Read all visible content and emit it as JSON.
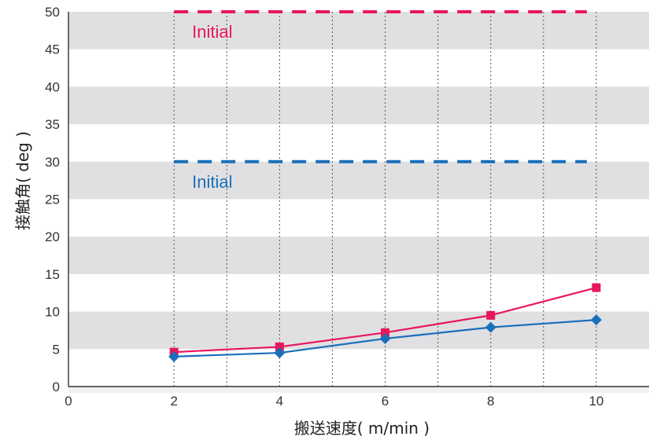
{
  "chart_data": {
    "type": "line",
    "xlabel": "搬送速度( m/min )",
    "ylabel": "接触角( deg )",
    "xlim": [
      0,
      11
    ],
    "ylim": [
      0,
      50
    ],
    "xticks": [
      0,
      2,
      4,
      6,
      8,
      10
    ],
    "yticks": [
      0,
      5,
      10,
      15,
      20,
      25,
      30,
      35,
      40,
      45,
      50
    ],
    "grid": "alternating horizontal bands, dotted vertical gridlines",
    "series": [
      {
        "color": "#e8175d",
        "marker": "square",
        "x": [
          2,
          4,
          6,
          8,
          10
        ],
        "y": [
          4.6,
          5.3,
          7.2,
          9.5,
          13.2
        ]
      },
      {
        "color": "#1a6fba",
        "marker": "diamond",
        "x": [
          2,
          4,
          6,
          8,
          10
        ],
        "y": [
          4.0,
          4.5,
          6.4,
          7.9,
          8.9
        ]
      }
    ],
    "reference_lines": [
      {
        "label": "Initial",
        "y": 50,
        "x_from": 2,
        "x_to": 10,
        "color": "#e8175d",
        "style": "dashed"
      },
      {
        "label": "Initial",
        "y": 30,
        "x_from": 2,
        "x_to": 10,
        "color": "#1a6fba",
        "style": "dashed"
      }
    ]
  }
}
